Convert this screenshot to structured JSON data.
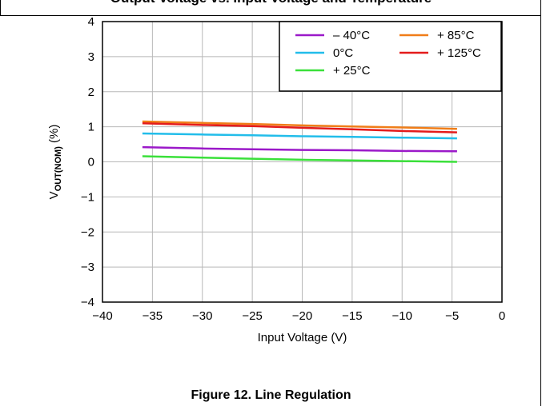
{
  "figure": {
    "top_title_fragment": "Output Voltage vs. Input Voltage and Temperature",
    "caption": "Figure 12. Line Regulation"
  },
  "chart_data": {
    "type": "line",
    "title": "",
    "xlabel": "Input Voltage (V)",
    "ylabel_main": "V",
    "ylabel_sub": "OUT(NOM)",
    "ylabel_unit": " (%)",
    "xlim": [
      -40,
      0
    ],
    "ylim": [
      -4,
      4
    ],
    "xticks": [
      -40,
      -35,
      -30,
      -25,
      -20,
      -15,
      -10,
      -5,
      0
    ],
    "xtick_labels": [
      "−40",
      "−35",
      "−30",
      "−25",
      "−20",
      "−15",
      "−10",
      "−5",
      "0"
    ],
    "yticks": [
      4,
      3,
      2,
      1,
      0,
      -1,
      -2,
      -3,
      -4
    ],
    "ytick_labels": [
      "4",
      "3",
      "2",
      "1",
      "0",
      "−1",
      "−2",
      "−3",
      "−4"
    ],
    "grid": true,
    "legend_position": "top-right",
    "series": [
      {
        "name": "– 40°C",
        "color": "#9b19c9",
        "x": [
          -36,
          -30,
          -25,
          -20,
          -15,
          -10,
          -4.5
        ],
        "y": [
          0.42,
          0.38,
          0.36,
          0.34,
          0.33,
          0.31,
          0.3
        ]
      },
      {
        "name": "0°C",
        "color": "#22bdea",
        "x": [
          -36,
          -30,
          -25,
          -20,
          -15,
          -10,
          -4.5
        ],
        "y": [
          0.81,
          0.78,
          0.76,
          0.73,
          0.71,
          0.69,
          0.67
        ]
      },
      {
        "name": "+ 25°C",
        "color": "#3ae03a",
        "x": [
          -36,
          -30,
          -25,
          -20,
          -15,
          -10,
          -4.5
        ],
        "y": [
          0.16,
          0.12,
          0.09,
          0.06,
          0.04,
          0.02,
          0.0
        ]
      },
      {
        "name": "+ 85°C",
        "color": "#f07d18",
        "x": [
          -36,
          -30,
          -25,
          -20,
          -15,
          -10,
          -4.5
        ],
        "y": [
          1.15,
          1.11,
          1.08,
          1.04,
          1.01,
          0.98,
          0.94
        ]
      },
      {
        "name": "+ 125°C",
        "color": "#e41b1b",
        "x": [
          -36,
          -30,
          -25,
          -20,
          -15,
          -10,
          -4.5
        ],
        "y": [
          1.1,
          1.05,
          1.02,
          0.97,
          0.93,
          0.88,
          0.84
        ]
      }
    ],
    "legend_order": [
      0,
      3,
      1,
      4,
      2
    ]
  }
}
